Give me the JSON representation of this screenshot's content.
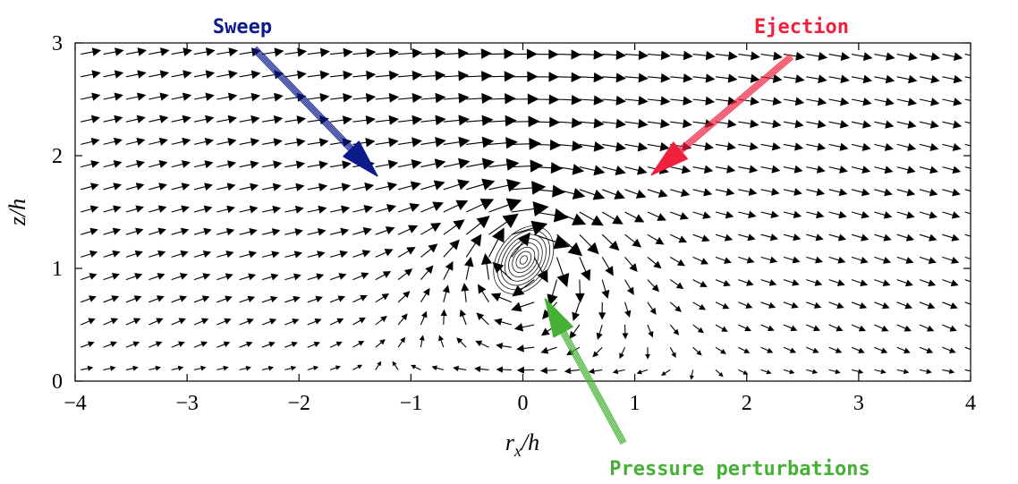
{
  "chart_data": {
    "type": "quiver",
    "xlabel_base": "r",
    "xlabel_sub": "x",
    "xlabel_suffix": "/h",
    "ylabel": "z/h",
    "xlim": [
      -4,
      4
    ],
    "ylim": [
      0,
      3
    ],
    "xticks": [
      -4,
      -3,
      -2,
      -1,
      0,
      1,
      2,
      3,
      4
    ],
    "xtick_labels": [
      "−4",
      "−3",
      "−2",
      "−1",
      "0",
      "1",
      "2",
      "3",
      "4"
    ],
    "yticks": [
      0,
      1,
      2,
      3
    ],
    "ytick_labels": [
      "0",
      "1",
      "2",
      "3"
    ],
    "grid": false,
    "contour_center": [
      0.0,
      1.08
    ],
    "annotations": [
      {
        "text": "Sweep",
        "color": "#0c1a8c",
        "from": [
          -2.4,
          2.95
        ],
        "to": [
          -1.3,
          1.82
        ]
      },
      {
        "text": "Ejection",
        "color": "#f0213d",
        "from": [
          2.4,
          2.88
        ],
        "to": [
          1.15,
          1.83
        ]
      },
      {
        "text": "Pressure perturbations",
        "color": "#45b035",
        "from": [
          0.9,
          -0.55
        ],
        "to": [
          0.2,
          0.73
        ]
      }
    ]
  }
}
